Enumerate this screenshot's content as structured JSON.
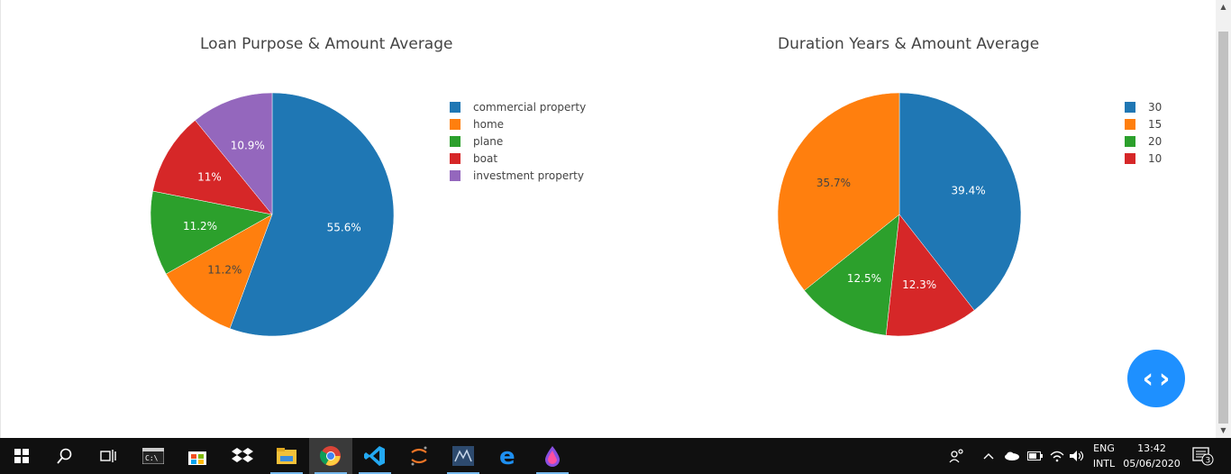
{
  "charts": [
    {
      "title": "Loan Purpose & Amount Average",
      "chart_data": {
        "type": "pie",
        "categories": [
          "commercial property",
          "home",
          "plane",
          "boat",
          "investment property"
        ],
        "values": [
          55.6,
          11.2,
          11.2,
          11.0,
          10.9
        ],
        "labels": [
          "55.6%",
          "11.2%",
          "11.2%",
          "11%",
          "10.9%"
        ],
        "colors": [
          "#1f77b4",
          "#ff7f0e",
          "#2ca02c",
          "#d62728",
          "#9467bd"
        ],
        "title": "Loan Purpose & Amount Average",
        "legend": "right"
      }
    },
    {
      "title": "Duration Years & Amount Average",
      "chart_data": {
        "type": "pie",
        "categories": [
          "30",
          "15",
          "20",
          "10"
        ],
        "values": [
          39.4,
          35.7,
          12.5,
          12.3
        ],
        "labels": [
          "39.4%",
          "35.7%",
          "12.5%",
          "12.3%"
        ],
        "display_order": [
          "30",
          "10",
          "20",
          "15"
        ],
        "colors": [
          "#1f77b4",
          "#ff7f0e",
          "#2ca02c",
          "#d62728"
        ],
        "title": "Duration Years & Amount Average",
        "legend": "right"
      }
    }
  ],
  "fab": {
    "icon": "code-icon",
    "color": "#1e90ff"
  },
  "taskbar": {
    "icons": [
      "windows-start-icon",
      "search-icon",
      "task-view-icon",
      "terminal-icon",
      "store-icon",
      "dropbox-icon",
      "file-explorer-icon",
      "chrome-icon",
      "vscode-icon",
      "jupyter-icon",
      "mysql-workbench-icon",
      "edge-icon",
      "paint-drop-icon"
    ],
    "lang_top": "ENG",
    "lang_bottom": "INTL",
    "time": "13:42",
    "date": "05/06/2020",
    "notifications": "3"
  }
}
